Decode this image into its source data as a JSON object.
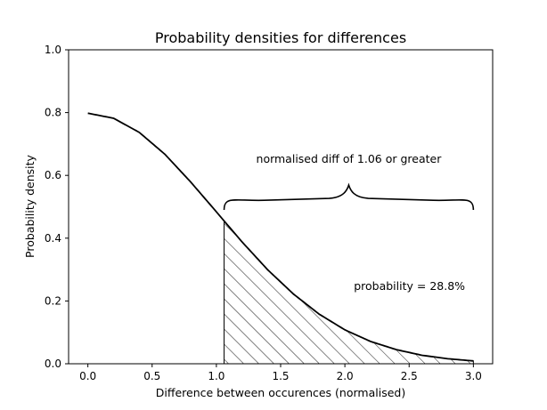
{
  "chart_data": {
    "type": "line",
    "title": "Probability densities for differences",
    "xlabel": "Difference between occurences (normalised)",
    "ylabel": "Probability density",
    "xlim": [
      -0.15,
      3.15
    ],
    "ylim": [
      0.0,
      1.0
    ],
    "xticks": [
      0.0,
      0.5,
      1.0,
      1.5,
      2.0,
      2.5,
      3.0
    ],
    "xtick_labels": [
      "0.0",
      "0.5",
      "1.0",
      "1.5",
      "2.0",
      "2.5",
      "3.0"
    ],
    "yticks": [
      0.0,
      0.2,
      0.4,
      0.6,
      0.8,
      1.0
    ],
    "ytick_labels": [
      "0.0",
      "0.2",
      "0.4",
      "0.6",
      "0.8",
      "1.0"
    ],
    "grid": false,
    "curve": {
      "x": [
        0.0,
        0.2,
        0.4,
        0.6,
        0.8,
        1.0,
        1.06,
        1.2,
        1.4,
        1.6,
        1.8,
        2.0,
        2.2,
        2.4,
        2.6,
        2.8,
        3.0
      ],
      "y": [
        0.798,
        0.782,
        0.737,
        0.667,
        0.579,
        0.484,
        0.455,
        0.388,
        0.299,
        0.222,
        0.158,
        0.108,
        0.071,
        0.045,
        0.027,
        0.016,
        0.009
      ],
      "color": "#000000"
    },
    "shaded_region": {
      "x_start": 1.06,
      "x_end": 3.0,
      "pattern": "hatch"
    },
    "brace": {
      "x_start": 1.06,
      "x_end": 3.0,
      "y": 0.49,
      "label": "normalised diff of 1.06 or greater",
      "label_position": [
        2.03,
        0.64
      ]
    },
    "annotations": [
      {
        "text": "probability = 28.8%",
        "position": [
          2.07,
          0.235
        ]
      }
    ]
  }
}
